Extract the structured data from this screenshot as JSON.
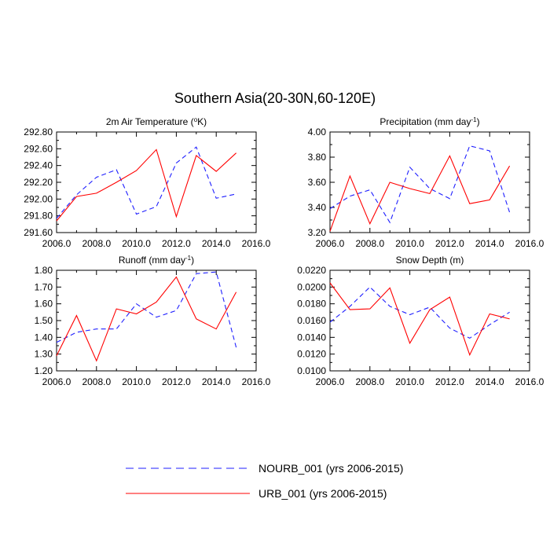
{
  "figure_title": "Southern Asia(20-30N,60-120E)",
  "colors": {
    "nourb": "#1f1fff",
    "urb": "#ff0000",
    "axis": "#000000"
  },
  "legend": {
    "nourb_label": "NOURB_001 (yrs 2006-2015)",
    "urb_label": "URB_001 (yrs 2006-2015)"
  },
  "chart_data": [
    {
      "type": "line",
      "title": "2m Air Temperature (°K)",
      "title_parts": {
        "pre": "2m Air Temperature (",
        "sup": "o",
        "post": "K)"
      },
      "x": [
        2006,
        2007,
        2008,
        2009,
        2010,
        2011,
        2012,
        2013,
        2014,
        2015
      ],
      "xlim": [
        2006,
        2016
      ],
      "ylim": [
        291.6,
        292.8
      ],
      "xticks": [
        "2006.0",
        "2008.0",
        "2010.0",
        "2012.0",
        "2014.0",
        "2016.0"
      ],
      "yticks": [
        "291.60",
        "291.80",
        "292.00",
        "292.20",
        "292.40",
        "292.60",
        "292.80"
      ],
      "series": [
        {
          "name": "NOURB_001 (yrs 2006-2015)",
          "style": "dashed",
          "values": [
            291.77,
            292.05,
            292.26,
            292.35,
            291.82,
            291.91,
            292.43,
            292.62,
            292.01,
            292.06
          ]
        },
        {
          "name": "URB_001 (yrs 2006-2015)",
          "style": "solid",
          "values": [
            291.74,
            292.03,
            292.07,
            292.2,
            292.34,
            292.59,
            291.79,
            292.52,
            292.33,
            292.55
          ]
        }
      ]
    },
    {
      "type": "line",
      "title": "Precipitation (mm day-1)",
      "title_parts": {
        "pre": "Precipitation (mm day",
        "sup": "-1",
        "post": ")"
      },
      "x": [
        2006,
        2007,
        2008,
        2009,
        2010,
        2011,
        2012,
        2013,
        2014,
        2015
      ],
      "xlim": [
        2006,
        2016
      ],
      "ylim": [
        3.2,
        4.0
      ],
      "xticks": [
        "2006.0",
        "2008.0",
        "2010.0",
        "2012.0",
        "2014.0",
        "2016.0"
      ],
      "yticks": [
        "3.20",
        "3.40",
        "3.60",
        "3.80",
        "4.00"
      ],
      "series": [
        {
          "name": "NOURB_001 (yrs 2006-2015)",
          "style": "dashed",
          "values": [
            3.39,
            3.49,
            3.54,
            3.28,
            3.72,
            3.55,
            3.47,
            3.89,
            3.85,
            3.36
          ]
        },
        {
          "name": "URB_001 (yrs 2006-2015)",
          "style": "solid",
          "values": [
            3.21,
            3.65,
            3.27,
            3.6,
            3.55,
            3.51,
            3.81,
            3.43,
            3.46,
            3.73
          ]
        }
      ]
    },
    {
      "type": "line",
      "title": "Runoff (mm day-1)",
      "title_parts": {
        "pre": "Runoff (mm day",
        "sup": "-1",
        "post": ")"
      },
      "x": [
        2006,
        2007,
        2008,
        2009,
        2010,
        2011,
        2012,
        2013,
        2014,
        2015
      ],
      "xlim": [
        2006,
        2016
      ],
      "ylim": [
        1.2,
        1.8
      ],
      "xticks": [
        "2006.0",
        "2008.0",
        "2010.0",
        "2012.0",
        "2014.0",
        "2016.0"
      ],
      "yticks": [
        "1.20",
        "1.30",
        "1.40",
        "1.50",
        "1.60",
        "1.70",
        "1.80"
      ],
      "series": [
        {
          "name": "NOURB_001 (yrs 2006-2015)",
          "style": "dashed",
          "values": [
            1.37,
            1.43,
            1.45,
            1.45,
            1.6,
            1.52,
            1.56,
            1.78,
            1.79,
            1.34
          ]
        },
        {
          "name": "URB_001 (yrs 2006-2015)",
          "style": "solid",
          "values": [
            1.29,
            1.53,
            1.26,
            1.57,
            1.54,
            1.61,
            1.76,
            1.51,
            1.45,
            1.67
          ]
        }
      ]
    },
    {
      "type": "line",
      "title": "Snow Depth (m)",
      "title_parts": {
        "pre": "Snow Depth (m)",
        "sup": "",
        "post": ""
      },
      "x": [
        2006,
        2007,
        2008,
        2009,
        2010,
        2011,
        2012,
        2013,
        2014,
        2015
      ],
      "xlim": [
        2006,
        2016
      ],
      "ylim": [
        0.01,
        0.022
      ],
      "xticks": [
        "2006.0",
        "2008.0",
        "2010.0",
        "2012.0",
        "2014.0",
        "2016.0"
      ],
      "yticks": [
        "0.0100",
        "0.0120",
        "0.0140",
        "0.0160",
        "0.0180",
        "0.0200",
        "0.0220"
      ],
      "series": [
        {
          "name": "NOURB_001 (yrs 2006-2015)",
          "style": "dashed",
          "values": [
            0.0158,
            0.0177,
            0.02,
            0.0177,
            0.0167,
            0.0176,
            0.0151,
            0.0139,
            0.0155,
            0.017
          ]
        },
        {
          "name": "URB_001 (yrs 2006-2015)",
          "style": "solid",
          "values": [
            0.0205,
            0.0173,
            0.0174,
            0.0199,
            0.0133,
            0.0173,
            0.0188,
            0.0119,
            0.0168,
            0.0162
          ]
        }
      ]
    }
  ]
}
